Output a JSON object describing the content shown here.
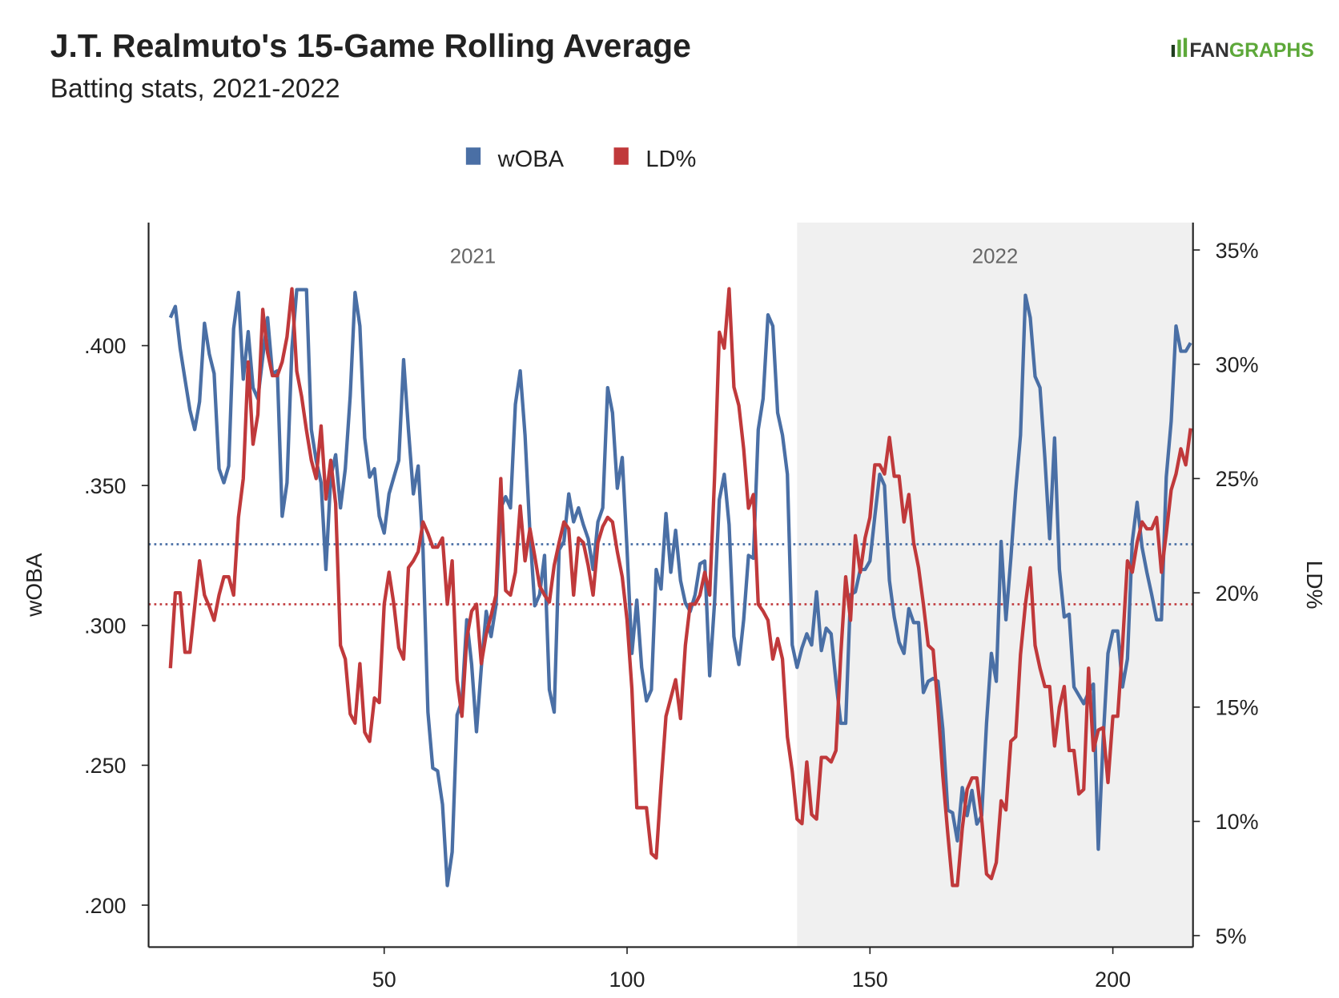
{
  "chart_data": {
    "type": "line",
    "title": "J.T. Realmuto's 15-Game Rolling Average",
    "subtitle": "Batting stats, 2021-2022",
    "logo": [
      "FAN",
      "GRAPHS"
    ],
    "ylabel": "wOBA",
    "y2label": "LD%",
    "xlim": [
      1.5,
      216.5
    ],
    "xticks": [
      50,
      100,
      150,
      200
    ],
    "ylim": [
      0.185,
      0.444
    ],
    "yticks": [
      {
        "value": 0.2,
        "label": ".200"
      },
      {
        "value": 0.25,
        "label": ".250"
      },
      {
        "value": 0.3,
        "label": ".300"
      },
      {
        "value": 0.35,
        "label": ".350"
      },
      {
        "value": 0.4,
        "label": ".400"
      }
    ],
    "y2lim": [
      4.5,
      36.2
    ],
    "y2ticks": [
      {
        "value": 5,
        "label": "5%"
      },
      {
        "value": 10,
        "label": "10%"
      },
      {
        "value": 15,
        "label": "15%"
      },
      {
        "value": 20,
        "label": "20%"
      },
      {
        "value": 25,
        "label": "25%"
      },
      {
        "value": 30,
        "label": "30%"
      },
      {
        "value": 35,
        "label": "35%"
      }
    ],
    "seasons": [
      {
        "label": "2021"
      },
      {
        "label": "2022",
        "start": 135,
        "color": "#f0f0f0"
      }
    ],
    "reference_lines": [
      {
        "axis": "y",
        "value": 0.329,
        "color": "#4a6fa5"
      },
      {
        "axis": "y2",
        "value": 19.5,
        "color": "#c0393b"
      }
    ],
    "x": [
      6,
      7,
      8,
      9,
      10,
      11,
      12,
      13,
      14,
      15,
      16,
      17,
      18,
      19,
      20,
      21,
      22,
      23,
      24,
      25,
      26,
      27,
      28,
      29,
      30,
      31,
      32,
      33,
      34,
      35,
      36,
      37,
      38,
      39,
      40,
      41,
      42,
      43,
      44,
      45,
      46,
      47,
      48,
      49,
      50,
      51,
      52,
      53,
      54,
      55,
      56,
      57,
      58,
      59,
      60,
      61,
      62,
      63,
      64,
      65,
      66,
      67,
      68,
      69,
      70,
      71,
      72,
      73,
      74,
      75,
      76,
      77,
      78,
      79,
      80,
      81,
      82,
      83,
      84,
      85,
      86,
      87,
      88,
      89,
      90,
      91,
      92,
      93,
      94,
      95,
      96,
      97,
      98,
      99,
      100,
      101,
      102,
      103,
      104,
      105,
      106,
      107,
      108,
      109,
      110,
      111,
      112,
      113,
      114,
      115,
      116,
      117,
      118,
      119,
      120,
      121,
      122,
      123,
      124,
      125,
      126,
      127,
      128,
      129,
      130,
      131,
      132,
      133,
      134,
      135,
      136,
      137,
      138,
      139,
      140,
      141,
      142,
      143,
      144,
      145,
      146,
      147,
      148,
      149,
      150,
      151,
      152,
      153,
      154,
      155,
      156,
      157,
      158,
      159,
      160,
      161,
      162,
      163,
      164,
      165,
      166,
      167,
      168,
      169,
      170,
      171,
      172,
      173,
      174,
      175,
      176,
      177,
      178,
      179,
      180,
      181,
      182,
      183,
      184,
      185,
      186,
      187,
      188,
      189,
      190,
      191,
      192,
      193,
      194,
      195,
      196,
      197,
      198,
      199,
      200,
      201,
      202,
      203,
      204,
      205,
      206,
      207,
      208,
      209,
      210,
      211,
      212,
      213,
      214,
      215,
      216
    ],
    "series": [
      {
        "name": "wOBA",
        "color": "#4a6fa5",
        "axis": "y",
        "values": [
          0.41,
          0.414,
          0.399,
          0.388,
          0.377,
          0.37,
          0.38,
          0.408,
          0.397,
          0.39,
          0.356,
          0.351,
          0.357,
          0.406,
          0.419,
          0.388,
          0.405,
          0.385,
          0.381,
          0.396,
          0.41,
          0.39,
          0.391,
          0.339,
          0.351,
          0.399,
          0.42,
          0.42,
          0.42,
          0.37,
          0.359,
          0.351,
          0.32,
          0.353,
          0.361,
          0.342,
          0.356,
          0.382,
          0.419,
          0.407,
          0.367,
          0.353,
          0.356,
          0.339,
          0.333,
          0.347,
          0.353,
          0.359,
          0.395,
          0.37,
          0.347,
          0.357,
          0.327,
          0.269,
          0.249,
          0.248,
          0.236,
          0.207,
          0.219,
          0.268,
          0.273,
          0.302,
          0.286,
          0.262,
          0.285,
          0.305,
          0.296,
          0.307,
          0.342,
          0.346,
          0.342,
          0.379,
          0.391,
          0.368,
          0.333,
          0.307,
          0.311,
          0.325,
          0.277,
          0.269,
          0.327,
          0.33,
          0.347,
          0.337,
          0.342,
          0.336,
          0.331,
          0.32,
          0.337,
          0.342,
          0.385,
          0.376,
          0.349,
          0.36,
          0.327,
          0.29,
          0.309,
          0.285,
          0.273,
          0.277,
          0.32,
          0.313,
          0.34,
          0.319,
          0.334,
          0.316,
          0.308,
          0.305,
          0.311,
          0.322,
          0.323,
          0.282,
          0.308,
          0.345,
          0.354,
          0.336,
          0.296,
          0.286,
          0.302,
          0.325,
          0.324,
          0.37,
          0.381,
          0.411,
          0.407,
          0.376,
          0.368,
          0.354,
          0.293,
          0.285,
          0.292,
          0.297,
          0.293,
          0.312,
          0.291,
          0.299,
          0.297,
          0.28,
          0.265,
          0.265,
          0.311,
          0.312,
          0.32,
          0.32,
          0.323,
          0.339,
          0.354,
          0.35,
          0.316,
          0.303,
          0.294,
          0.29,
          0.306,
          0.301,
          0.301,
          0.276,
          0.28,
          0.281,
          0.28,
          0.263,
          0.234,
          0.233,
          0.223,
          0.242,
          0.232,
          0.241,
          0.229,
          0.232,
          0.265,
          0.29,
          0.28,
          0.33,
          0.302,
          0.324,
          0.348,
          0.368,
          0.418,
          0.41,
          0.389,
          0.385,
          0.36,
          0.331,
          0.367,
          0.32,
          0.303,
          0.304,
          0.278,
          0.275,
          0.272,
          0.276,
          0.279,
          0.22,
          0.259,
          0.29,
          0.298,
          0.298,
          0.278,
          0.288,
          0.33,
          0.344,
          0.328,
          0.319,
          0.311,
          0.302,
          0.302,
          0.353,
          0.373,
          0.407,
          0.398,
          0.398,
          0.401
        ]
      },
      {
        "name": "LD%",
        "color": "#c0393b",
        "axis": "y2",
        "values": [
          16.7,
          20.0,
          20.0,
          17.4,
          17.4,
          19.4,
          21.4,
          19.9,
          19.4,
          18.8,
          19.9,
          20.7,
          20.7,
          19.9,
          23.3,
          25.0,
          30.1,
          26.5,
          27.8,
          32.4,
          30.5,
          29.5,
          29.5,
          30.1,
          31.2,
          33.3,
          29.7,
          28.6,
          27.1,
          25.8,
          25.0,
          27.3,
          24.1,
          25.8,
          23.9,
          17.7,
          17.1,
          14.7,
          14.3,
          16.9,
          13.9,
          13.5,
          15.4,
          15.2,
          19.5,
          20.9,
          19.5,
          17.6,
          17.1,
          21.1,
          21.4,
          21.8,
          23.1,
          22.6,
          22.0,
          22.0,
          22.4,
          19.5,
          21.4,
          16.2,
          14.6,
          18.0,
          19.2,
          19.5,
          16.9,
          18.2,
          19.0,
          19.9,
          25.0,
          20.1,
          19.9,
          20.9,
          23.8,
          21.4,
          22.8,
          21.6,
          20.3,
          19.9,
          19.6,
          21.2,
          22.2,
          23.1,
          22.8,
          19.9,
          22.4,
          22.2,
          21.2,
          19.9,
          22.2,
          22.9,
          23.3,
          23.1,
          21.8,
          20.7,
          18.8,
          15.8,
          10.6,
          10.6,
          10.6,
          8.6,
          8.4,
          11.6,
          14.6,
          15.4,
          16.2,
          14.5,
          17.7,
          19.5,
          19.5,
          19.9,
          20.9,
          19.9,
          25.0,
          31.4,
          30.7,
          33.3,
          29.0,
          28.2,
          26.3,
          23.7,
          24.3,
          19.5,
          19.2,
          18.8,
          17.1,
          18.0,
          17.1,
          13.7,
          12.2,
          10.1,
          9.9,
          12.6,
          10.3,
          10.1,
          12.8,
          12.8,
          12.6,
          13.1,
          17.3,
          20.7,
          18.8,
          22.5,
          20.9,
          22.4,
          23.3,
          25.6,
          25.6,
          25.2,
          26.8,
          25.1,
          25.1,
          23.1,
          24.3,
          22.2,
          21.1,
          19.5,
          17.7,
          17.5,
          15.0,
          12.0,
          9.5,
          7.2,
          7.2,
          9.7,
          11.4,
          11.9,
          11.9,
          10.1,
          7.7,
          7.5,
          8.2,
          10.9,
          10.5,
          13.5,
          13.7,
          17.3,
          19.5,
          21.1,
          17.7,
          16.7,
          15.9,
          15.9,
          13.3,
          15.0,
          15.9,
          13.1,
          13.1,
          11.2,
          11.4,
          16.7,
          13.1,
          14.0,
          14.1,
          11.7,
          14.6,
          14.6,
          17.7,
          21.4,
          20.9,
          22.2,
          23.1,
          22.8,
          22.8,
          23.3,
          20.9,
          22.6,
          24.5,
          25.2,
          26.3,
          25.6,
          27.2
        ]
      }
    ]
  }
}
